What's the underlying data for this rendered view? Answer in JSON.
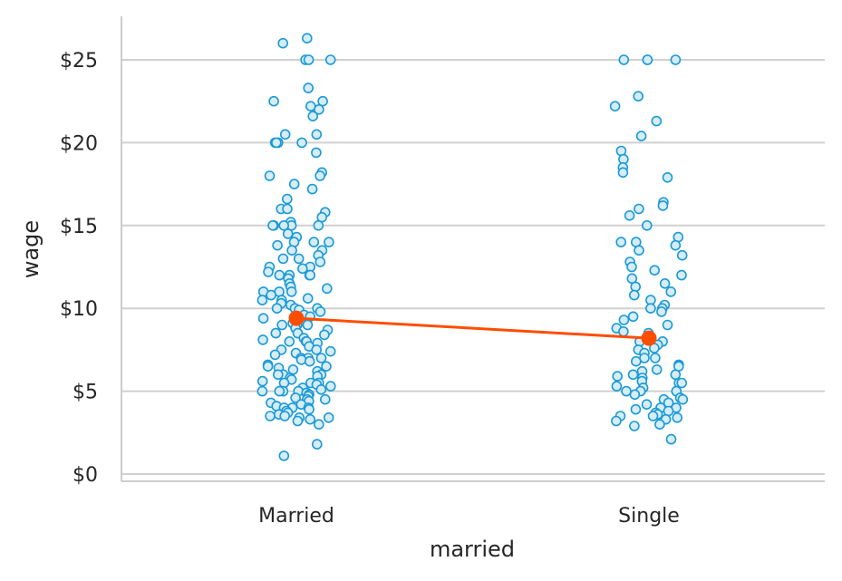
{
  "chart_data": {
    "type": "scatter",
    "subtype": "strip-plot-with-mean-line",
    "xlabel": "married",
    "ylabel": "wage",
    "categories": [
      "Married",
      "Single"
    ],
    "ylim": [
      0,
      27.5
    ],
    "yticks": [
      0,
      5,
      10,
      15,
      20,
      25
    ],
    "ytick_labels": [
      "$0",
      "$5",
      "$10",
      "$15",
      "$20",
      "$25"
    ],
    "grid": "horizontal",
    "colors": {
      "points": "#1a9ad6",
      "point_fill": "#d6ecf7",
      "mean": "#ff4d00",
      "grid": "#d0d0d0",
      "axis": "#cccccc",
      "text": "#262626"
    },
    "means": [
      9.4,
      8.2
    ],
    "points": {
      "Married": [
        26.3,
        26.0,
        25.0,
        25.0,
        25.0,
        23.3,
        22.5,
        22.5,
        22.2,
        22.0,
        21.6,
        20.5,
        20.5,
        20.0,
        20.0,
        20.0,
        20.0,
        19.4,
        18.2,
        18.0,
        18.0,
        17.5,
        17.2,
        16.6,
        16.0,
        16.0,
        15.8,
        15.5,
        15.2,
        15.0,
        15.0,
        15.0,
        15.0,
        15.0,
        14.5,
        14.3,
        14.0,
        14.0,
        14.0,
        13.8,
        13.5,
        13.5,
        13.2,
        13.0,
        13.0,
        12.8,
        12.5,
        12.5,
        12.4,
        12.2,
        12.0,
        12.0,
        12.0,
        12.0,
        11.8,
        11.5,
        11.3,
        11.2,
        11.0,
        11.0,
        11.0,
        10.8,
        10.6,
        10.5,
        10.5,
        10.3,
        10.2,
        10.0,
        10.0,
        10.0,
        9.9,
        9.8,
        9.6,
        9.5,
        9.4,
        9.2,
        9.1,
        9.0,
        9.0,
        9.0,
        8.8,
        8.7,
        8.5,
        8.5,
        8.4,
        8.2,
        8.1,
        8.0,
        8.0,
        8.0,
        7.9,
        7.7,
        7.5,
        7.5,
        7.4,
        7.3,
        7.2,
        7.0,
        7.0,
        7.0,
        6.9,
        6.8,
        6.6,
        6.5,
        6.5,
        6.4,
        6.3,
        6.2,
        6.0,
        6.0,
        6.0,
        5.9,
        5.8,
        5.7,
        5.6,
        5.5,
        5.5,
        5.5,
        5.4,
        5.3,
        5.2,
        5.1,
        5.0,
        5.0,
        5.0,
        5.0,
        4.9,
        4.8,
        4.7,
        4.6,
        4.5,
        4.5,
        4.4,
        4.3,
        4.2,
        4.1,
        4.0,
        4.0,
        4.0,
        3.9,
        3.8,
        3.7,
        3.6,
        3.5,
        3.5,
        3.4,
        3.4,
        3.3,
        3.2,
        3.0,
        1.8,
        1.1
      ],
      "Single": [
        25.0,
        25.0,
        25.0,
        25.0,
        22.8,
        22.2,
        21.3,
        20.4,
        19.5,
        19.0,
        18.5,
        18.2,
        17.9,
        16.4,
        16.2,
        16.0,
        15.6,
        15.0,
        14.3,
        14.0,
        14.0,
        13.8,
        13.5,
        13.2,
        12.8,
        12.5,
        12.3,
        12.0,
        11.8,
        11.5,
        11.3,
        11.0,
        10.8,
        10.5,
        10.2,
        10.0,
        10.0,
        9.8,
        9.5,
        9.3,
        9.0,
        8.8,
        8.6,
        8.5,
        8.2,
        8.0,
        8.0,
        7.8,
        7.6,
        7.5,
        7.3,
        7.0,
        7.0,
        6.8,
        6.6,
        6.5,
        6.3,
        6.2,
        6.0,
        6.0,
        5.9,
        5.8,
        5.6,
        5.5,
        5.5,
        5.3,
        5.2,
        5.0,
        5.0,
        5.0,
        4.8,
        4.6,
        4.5,
        4.5,
        4.3,
        4.2,
        4.0,
        4.0,
        3.9,
        3.8,
        3.7,
        3.6,
        3.5,
        3.5,
        3.4,
        3.3,
        3.2,
        3.0,
        2.9,
        2.1
      ]
    }
  }
}
